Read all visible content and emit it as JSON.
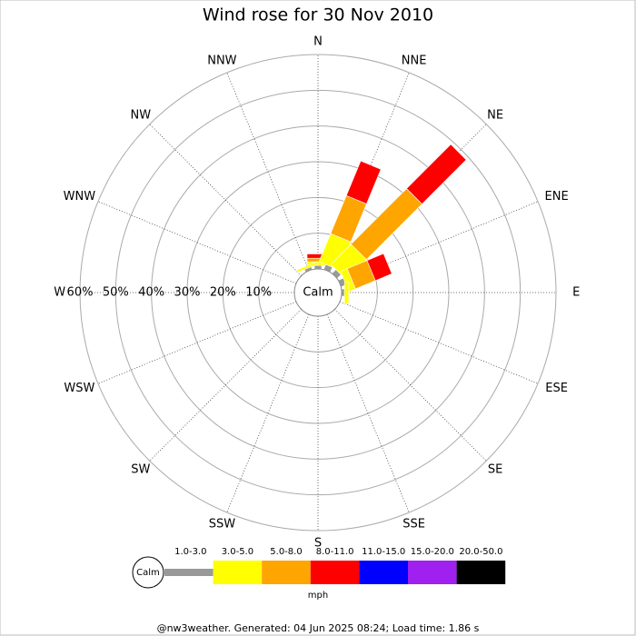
{
  "chart_data": {
    "type": "windrose",
    "title": "Wind rose for 30 Nov 2010",
    "categories": [
      "N",
      "NNE",
      "NE",
      "ENE",
      "E",
      "ESE",
      "SE",
      "SSE",
      "S",
      "SSW",
      "SW",
      "WSW",
      "W",
      "WNW",
      "NW",
      "NNW"
    ],
    "calm_label": "Calm",
    "ylim": [
      0,
      60
    ],
    "yticks": [
      {
        "value": 10,
        "label": "10%"
      },
      {
        "value": 20,
        "label": "20%"
      },
      {
        "value": 30,
        "label": "30%"
      },
      {
        "value": 40,
        "label": "40%"
      },
      {
        "value": 50,
        "label": "50%"
      },
      {
        "value": 60,
        "label": "60%"
      }
    ],
    "series": [
      {
        "name": "1.0-3.0",
        "color": "#999999",
        "values": [
          1,
          1.5,
          1.5,
          1.5,
          0.8,
          0,
          0,
          0,
          0,
          0,
          0,
          0,
          0,
          0,
          0,
          0.8
        ]
      },
      {
        "name": "3.0-5.0",
        "color": "#ffff00",
        "values": [
          1,
          8.5,
          8,
          2,
          1.2,
          0,
          0,
          0,
          0,
          0,
          0,
          0,
          0,
          0,
          0,
          0.7
        ]
      },
      {
        "name": "5.0-8.0",
        "color": "#ffa500",
        "values": [
          1,
          11.5,
          22,
          6,
          0,
          0,
          0,
          0,
          0,
          0,
          0,
          0,
          0,
          0,
          0,
          0
        ]
      },
      {
        "name": "8.0-11.0",
        "color": "#ff0000",
        "values": [
          1.2,
          10.5,
          17.5,
          5,
          0,
          0,
          0,
          0,
          0,
          0,
          0,
          0,
          0,
          0,
          0,
          0
        ]
      },
      {
        "name": "11.0-15.0",
        "color": "#0000ff",
        "values": [
          0,
          0,
          0,
          0,
          0,
          0,
          0,
          0,
          0,
          0,
          0,
          0,
          0,
          0,
          0,
          0
        ]
      },
      {
        "name": "15.0-20.0",
        "color": "#a020f0",
        "values": [
          0,
          0,
          0,
          0,
          0,
          0,
          0,
          0,
          0,
          0,
          0,
          0,
          0,
          0,
          0,
          0
        ]
      },
      {
        "name": "20.0-50.0",
        "color": "#000000",
        "values": [
          0,
          0,
          0,
          0,
          0,
          0,
          0,
          0,
          0,
          0,
          0,
          0,
          0,
          0,
          0,
          0
        ]
      }
    ],
    "unit_label": "mph",
    "footer": "@nw3weather. Generated: 04 Jun 2025 08:24; Load time: 1.86 s"
  }
}
